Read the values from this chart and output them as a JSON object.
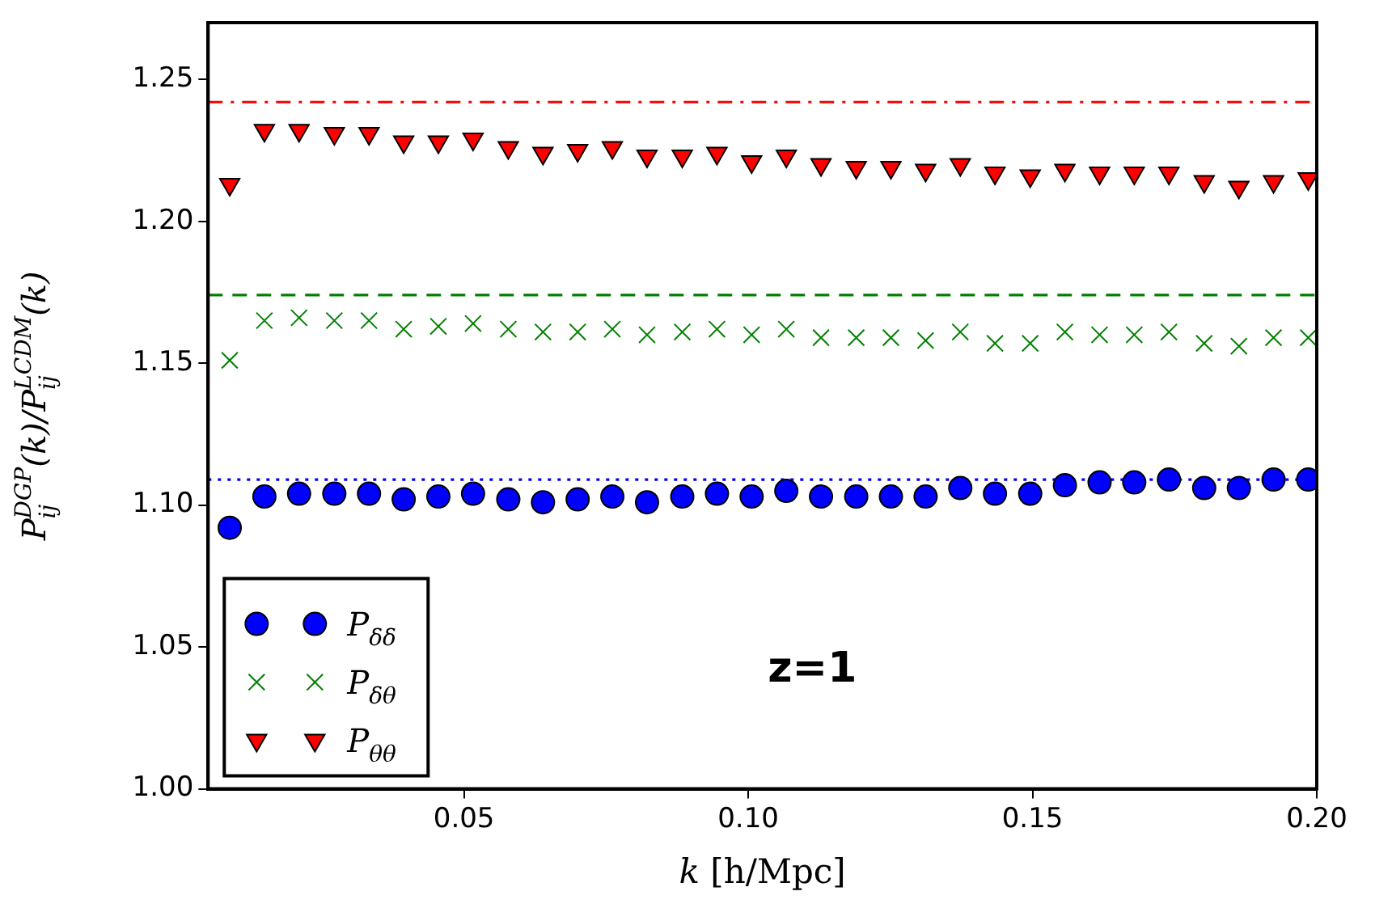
{
  "chart_data": {
    "type": "scatter",
    "x": [
      0.0088,
      0.0149,
      0.021,
      0.0272,
      0.0333,
      0.0394,
      0.0455,
      0.0516,
      0.0578,
      0.0639,
      0.07,
      0.0761,
      0.0822,
      0.0884,
      0.0945,
      0.1006,
      0.1067,
      0.1128,
      0.119,
      0.1251,
      0.1312,
      0.1373,
      0.1434,
      0.1496,
      0.1557,
      0.1618,
      0.1679,
      0.174,
      0.1802,
      0.1863,
      0.1924,
      0.1985
    ],
    "series": [
      {
        "name": "P$_{δδ}$",
        "color": "#0000ff",
        "marker": "circle",
        "values": [
          1.092,
          1.103,
          1.104,
          1.104,
          1.104,
          1.102,
          1.103,
          1.104,
          1.102,
          1.101,
          1.102,
          1.103,
          1.101,
          1.103,
          1.104,
          1.103,
          1.105,
          1.103,
          1.103,
          1.103,
          1.103,
          1.106,
          1.104,
          1.104,
          1.107,
          1.108,
          1.108,
          1.109,
          1.106,
          1.106,
          1.109,
          1.109
        ]
      },
      {
        "name": "P$_{δθ}$",
        "color": "#008000",
        "marker": "cross",
        "values": [
          1.151,
          1.165,
          1.166,
          1.165,
          1.165,
          1.162,
          1.163,
          1.164,
          1.162,
          1.161,
          1.161,
          1.162,
          1.16,
          1.161,
          1.162,
          1.16,
          1.162,
          1.159,
          1.159,
          1.159,
          1.158,
          1.161,
          1.157,
          1.157,
          1.161,
          1.16,
          1.16,
          1.161,
          1.157,
          1.156,
          1.159,
          1.159
        ]
      },
      {
        "name": "P$_{θθ}$",
        "color": "#ff0000",
        "marker": "triangle_down",
        "values": [
          1.213,
          1.232,
          1.232,
          1.231,
          1.231,
          1.228,
          1.228,
          1.229,
          1.226,
          1.224,
          1.225,
          1.226,
          1.223,
          1.223,
          1.224,
          1.221,
          1.223,
          1.22,
          1.219,
          1.219,
          1.218,
          1.22,
          1.217,
          1.216,
          1.218,
          1.217,
          1.217,
          1.217,
          1.214,
          1.212,
          1.214,
          1.215
        ]
      }
    ],
    "xlim": [
      0.005,
      0.2
    ],
    "xticks": [
      0.05,
      {
        "value": 0.1,
        "label": "0.10"
      },
      0.15,
      {
        "value": 0.2,
        "label": "0.20"
      }
    ],
    "ylim": [
      1.0,
      1.27
    ],
    "yticks": [
      {
        "value": 1.0,
        "label": "1.00"
      },
      1.05,
      {
        "value": 1.1,
        "label": "1.10"
      },
      1.15,
      {
        "value": 1.2,
        "label": "1.20"
      },
      1.25
    ],
    "xlabel": "k [h/Mpc]",
    "ylabel": "P$_{ij}$$^{DGP}$(k)/P$_{ij}$$^{LCDM}$(k)",
    "ref_lines": [
      {
        "axis": "y",
        "value": 1.242,
        "color": "#ff0000",
        "line_style": "dashdot"
      },
      {
        "axis": "y",
        "value": 1.174,
        "color": "#008000",
        "line_style": "dashed"
      },
      {
        "axis": "y",
        "value": 1.109,
        "color": "#0000ff",
        "line_style": "dotted"
      }
    ],
    "annotations": [
      "z=1"
    ],
    "legend": "bottom left",
    "grid": false
  }
}
